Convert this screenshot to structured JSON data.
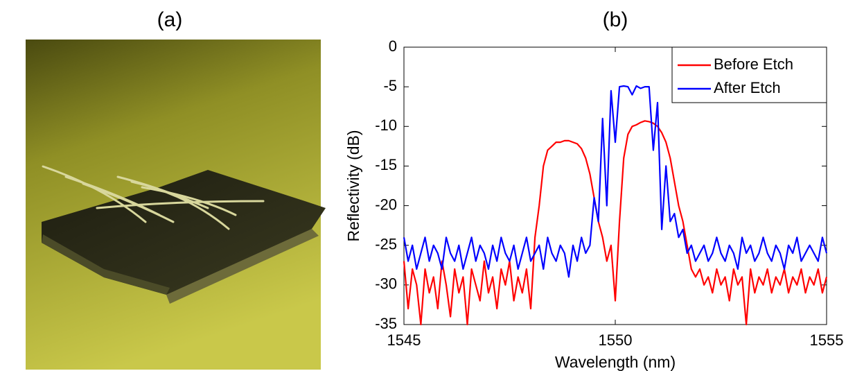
{
  "panel_a": {
    "label": "(a)"
  },
  "chart_data": {
    "type": "line",
    "title": "(b)",
    "x_label": "Wavelength (nm)",
    "y_label": "Reflectivity (dB)",
    "xlim": [
      1545,
      1555
    ],
    "xticks": [
      1545,
      1550,
      1555
    ],
    "ylim": [
      -35,
      0
    ],
    "yticks": [
      0,
      -5,
      -10,
      -15,
      -20,
      -25,
      -30,
      -35
    ],
    "legend": "top-right",
    "x": [
      1545,
      1545.1,
      1545.2,
      1545.3,
      1545.4,
      1545.5,
      1545.6,
      1545.7,
      1545.8,
      1545.9,
      1546,
      1546.1,
      1546.2,
      1546.3,
      1546.4,
      1546.5,
      1546.6,
      1546.7,
      1546.8,
      1546.9,
      1547,
      1547.1,
      1547.2,
      1547.3,
      1547.4,
      1547.5,
      1547.6,
      1547.7,
      1547.8,
      1547.9,
      1548,
      1548.1,
      1548.2,
      1548.3,
      1548.4,
      1548.5,
      1548.6,
      1548.7,
      1548.8,
      1548.9,
      1549,
      1549.1,
      1549.2,
      1549.3,
      1549.4,
      1549.5,
      1549.6,
      1549.7,
      1549.8,
      1549.9,
      1550,
      1550.1,
      1550.2,
      1550.3,
      1550.4,
      1550.5,
      1550.6,
      1550.7,
      1550.8,
      1550.9,
      1551,
      1551.1,
      1551.2,
      1551.3,
      1551.4,
      1551.5,
      1551.6,
      1551.7,
      1551.8,
      1551.9,
      1552,
      1552.1,
      1552.2,
      1552.3,
      1552.4,
      1552.5,
      1552.6,
      1552.7,
      1552.8,
      1552.9,
      1553,
      1553.1,
      1553.2,
      1553.3,
      1553.4,
      1553.5,
      1553.6,
      1553.7,
      1553.8,
      1553.9,
      1554,
      1554.1,
      1554.2,
      1554.3,
      1554.4,
      1554.5,
      1554.6,
      1554.7,
      1554.8,
      1554.9,
      1555
    ],
    "series": [
      {
        "name": "Before Etch",
        "color": "#ff0000",
        "values": [
          -27,
          -33,
          -28,
          -30,
          -35,
          -28,
          -31,
          -29,
          -33,
          -27,
          -30,
          -34,
          -28,
          -31,
          -29,
          -35,
          -28,
          -30,
          -32,
          -27,
          -31,
          -29,
          -33,
          -28,
          -30,
          -27,
          -32,
          -29,
          -31,
          -28,
          -33,
          -24,
          -20,
          -15,
          -13,
          -12.5,
          -12,
          -12,
          -11.8,
          -11.8,
          -12,
          -12.2,
          -12.8,
          -14,
          -16,
          -19,
          -22,
          -24,
          -27,
          -25,
          -32,
          -22,
          -14,
          -11,
          -10,
          -9.8,
          -9.5,
          -9.3,
          -9.4,
          -9.6,
          -10,
          -10.8,
          -12,
          -14,
          -17,
          -20,
          -22,
          -25,
          -28,
          -29,
          -28,
          -30,
          -29,
          -31,
          -28,
          -30,
          -29,
          -32,
          -28,
          -30,
          -29,
          -35,
          -28,
          -31,
          -29,
          -30,
          -28,
          -31,
          -29,
          -30,
          -28,
          -31,
          -29,
          -30,
          -28,
          -31,
          -29,
          -30,
          -28,
          -31,
          -29
        ]
      },
      {
        "name": "After Etch",
        "color": "#0000ff",
        "values": [
          -24,
          -27,
          -25,
          -28,
          -26,
          -24,
          -27,
          -25,
          -26,
          -28,
          -24,
          -26,
          -27,
          -25,
          -28,
          -26,
          -24,
          -27,
          -25,
          -26,
          -28,
          -25,
          -27,
          -24,
          -26,
          -27,
          -25,
          -28,
          -26,
          -24,
          -27,
          -26,
          -25,
          -28,
          -24,
          -26,
          -27,
          -25,
          -26,
          -29,
          -25,
          -27,
          -24,
          -26,
          -25,
          -19,
          -22,
          -9,
          -20,
          -5.5,
          -12,
          -5,
          -4.9,
          -5,
          -6,
          -4.9,
          -5.2,
          -5,
          -5,
          -13,
          -7,
          -23,
          -15,
          -22,
          -21,
          -24,
          -23,
          -26,
          -25,
          -27,
          -26,
          -25,
          -27,
          -26,
          -24,
          -26,
          -27,
          -25,
          -26,
          -28,
          -24,
          -26,
          -25,
          -27,
          -26,
          -24,
          -26,
          -27,
          -25,
          -26,
          -28,
          -25,
          -26,
          -24,
          -27,
          -26,
          -25,
          -26,
          -27,
          -24,
          -26
        ]
      }
    ]
  }
}
